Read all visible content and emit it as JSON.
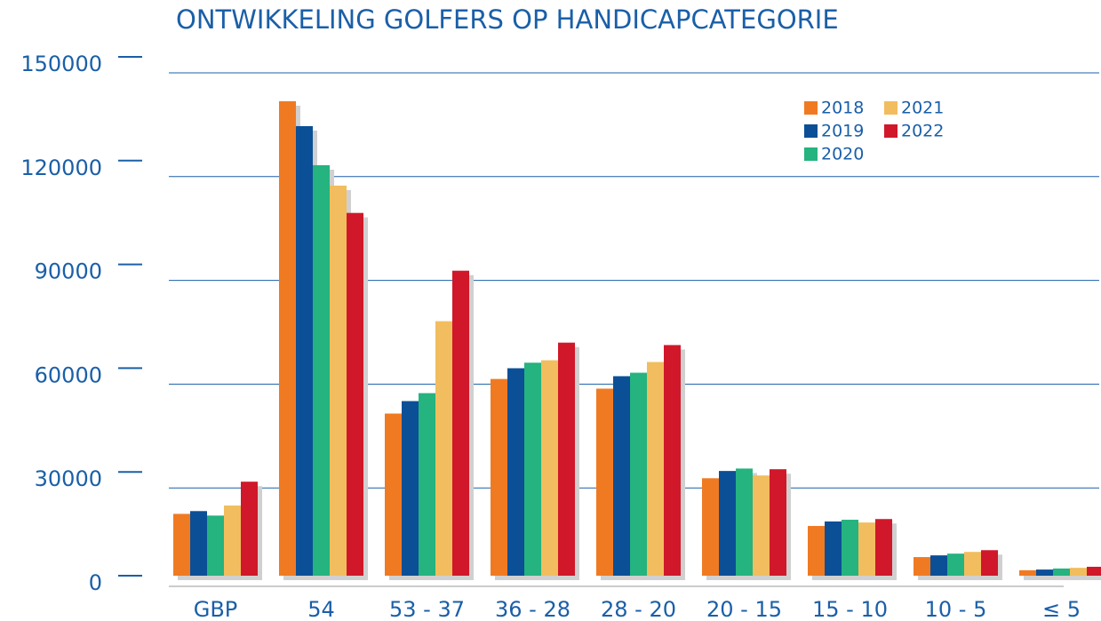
{
  "chart_data": {
    "type": "bar",
    "title": "ONTWIKKELING GOLFERS OP HANDICAPCATEGORIE",
    "categories": [
      "GBP",
      "54",
      "53 - 37",
      "36 - 28",
      "28 - 20",
      "20 - 15",
      "15 - 10",
      "10 - 5",
      "≤ 5"
    ],
    "series": [
      {
        "name": "2018",
        "color": "#f07a22",
        "values": [
          22500,
          141800,
          51500,
          61500,
          58700,
          32800,
          19000,
          10000,
          6200
        ]
      },
      {
        "name": "2019",
        "color": "#0b4f97",
        "values": [
          23300,
          134600,
          55100,
          64600,
          62300,
          34900,
          20300,
          10500,
          6400
        ]
      },
      {
        "name": "2020",
        "color": "#25b37f",
        "values": [
          22000,
          123300,
          57400,
          66200,
          63300,
          35600,
          20800,
          11000,
          6700
        ]
      },
      {
        "name": "2021",
        "color": "#f2bd5e",
        "values": [
          24900,
          117400,
          78200,
          66900,
          66400,
          33600,
          20000,
          11500,
          6900
        ]
      },
      {
        "name": "2022",
        "color": "#d0182a",
        "values": [
          31800,
          109500,
          92800,
          72000,
          71300,
          35400,
          21000,
          12000,
          7200
        ]
      }
    ],
    "ylim": [
      0,
      150000
    ],
    "yticks": [
      0,
      30000,
      60000,
      90000,
      120000,
      150000
    ],
    "grid": true,
    "legend": "top-right"
  }
}
